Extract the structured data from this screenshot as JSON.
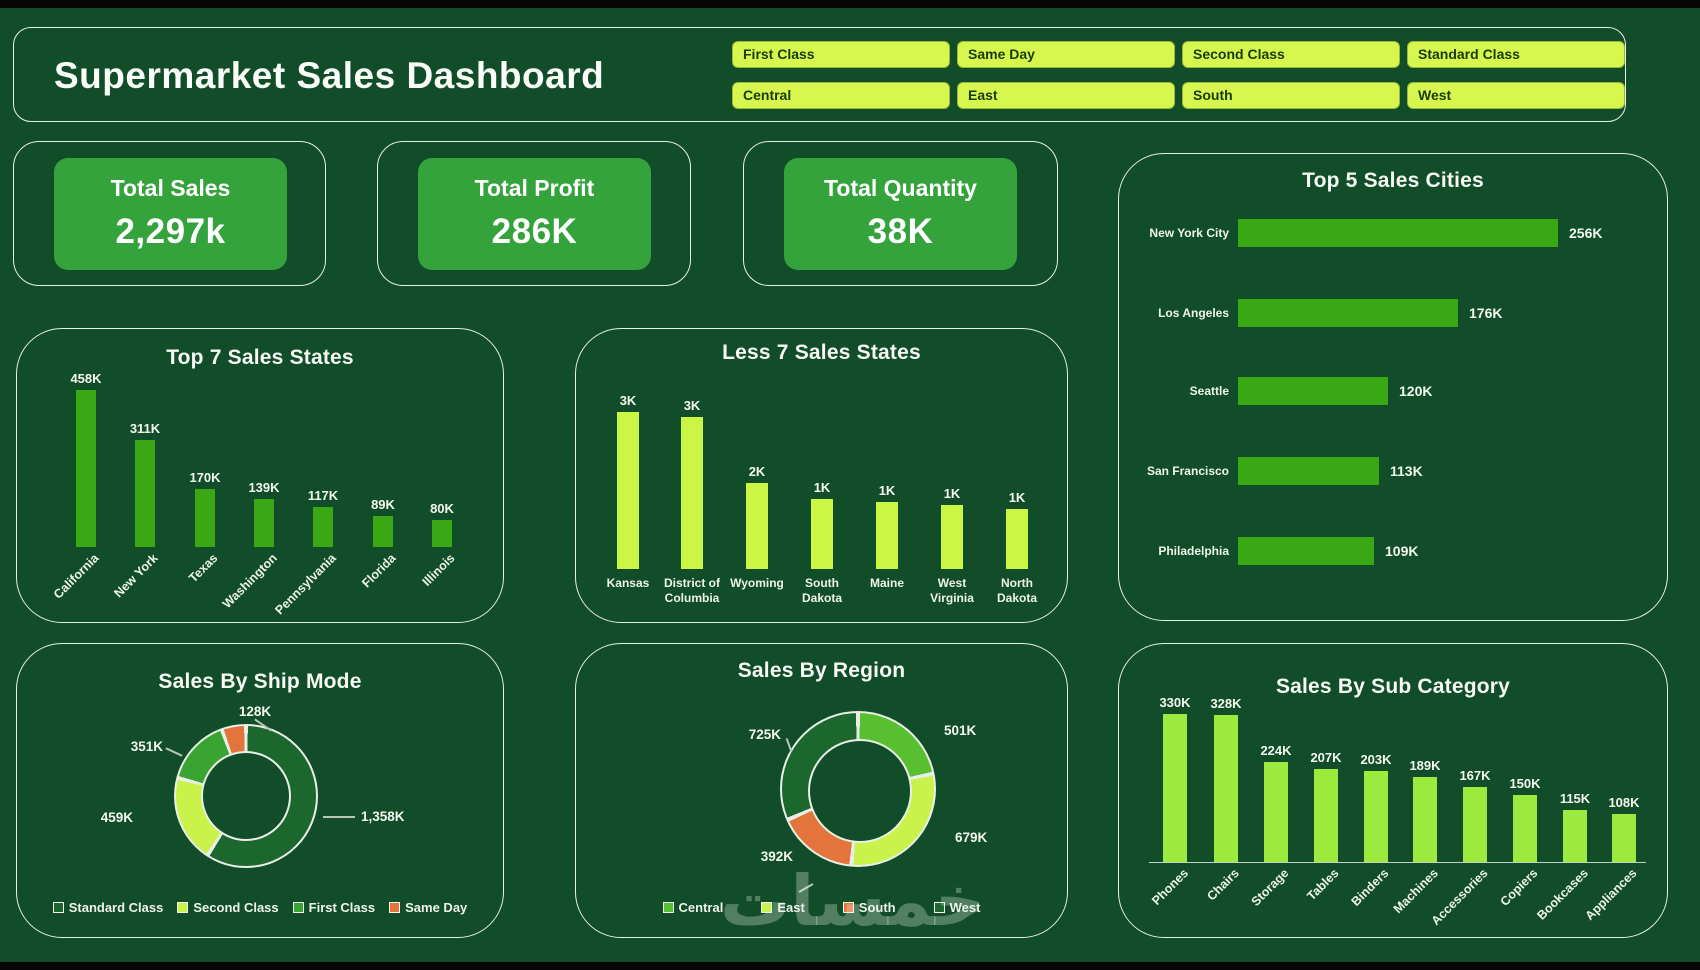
{
  "header": {
    "title": "Supermarket Sales Dashboard",
    "filters": [
      "First Class",
      "Same Day",
      "Second Class",
      "Standard Class",
      "Central",
      "East",
      "South",
      "West"
    ]
  },
  "kpis": [
    {
      "label": "Total Sales",
      "value": "2,297k"
    },
    {
      "label": "Total Profit",
      "value": "286K"
    },
    {
      "label": "Total Quantity",
      "value": "38K"
    }
  ],
  "colors": {
    "background": "#114d28",
    "panel_border": "#e8efe6",
    "kpi_card_green": "#34a33c",
    "bar_green": "#3aa815",
    "button_lime": "#d7f74f",
    "less7_lime": "#ccf644",
    "subcat_green": "#9dea3e",
    "donut_dark_green": "#1b672e",
    "donut_medium_green": "#3aa432",
    "donut_bright_green": "#58bf31",
    "donut_lime": "#c9f34b",
    "donut_orange": "#e3743c"
  },
  "watermark": {
    "text": "خمسات"
  },
  "chart_data": [
    {
      "type": "bar",
      "orientation": "horizontal",
      "title": "Top 5 Sales Cities",
      "categories": [
        "New York City",
        "Los Angeles",
        "Seattle",
        "San Francisco",
        "Philadelphia"
      ],
      "values": [
        256,
        176,
        120,
        113,
        109
      ],
      "unit": "K",
      "data_labels": [
        "256K",
        "176K",
        "120K",
        "113K",
        "109K"
      ],
      "bar_color": "#3aa815",
      "grid": false,
      "axis_labels_shown": false
    },
    {
      "type": "bar",
      "orientation": "vertical",
      "title": "Top 7 Sales States",
      "categories": [
        "California",
        "New York",
        "Texas",
        "Washington",
        "Pennsylvania",
        "Florida",
        "Illinois"
      ],
      "values": [
        458,
        311,
        170,
        139,
        117,
        89,
        80
      ],
      "unit": "K",
      "data_labels": [
        "458K",
        "311K",
        "170K",
        "139K",
        "117K",
        "89K",
        "80K"
      ],
      "bar_color": "#3aa815",
      "grid": false
    },
    {
      "type": "bar",
      "orientation": "vertical",
      "title": "Less 7 Sales States",
      "categories": [
        "Kansas",
        "District of Columbia",
        "Wyoming",
        "South Dakota",
        "Maine",
        "West Virginia",
        "North Dakota"
      ],
      "category_lines": [
        [
          "Kansas"
        ],
        [
          "District of",
          "Columbia"
        ],
        [
          "Wyoming"
        ],
        [
          "South",
          "Dakota"
        ],
        [
          "Maine"
        ],
        [
          "West",
          "Virginia"
        ],
        [
          "North",
          "Dakota"
        ]
      ],
      "values": [
        3,
        3,
        2,
        1,
        1,
        1,
        1
      ],
      "unit": "K",
      "data_labels": [
        "3K",
        "3K",
        "2K",
        "1K",
        "1K",
        "1K",
        "1K"
      ],
      "bar_color": "#ccf644",
      "grid": false
    },
    {
      "type": "donut",
      "title": "Sales By Ship Mode",
      "unit": "K",
      "slices": [
        {
          "name": "Standard Class",
          "value": 1358,
          "label": "1,358K",
          "color": "#1b672e"
        },
        {
          "name": "Second Class",
          "value": 459,
          "label": "459K",
          "color": "#c9f34b"
        },
        {
          "name": "First Class",
          "value": 351,
          "label": "351K",
          "color": "#3aa432"
        },
        {
          "name": "Same Day",
          "value": 128,
          "label": "128K",
          "color": "#e3743c"
        }
      ],
      "legend": [
        "Standard Class",
        "Second Class",
        "First Class",
        "Same Day"
      ],
      "legend_position": "bottom"
    },
    {
      "type": "donut",
      "title": "Sales By Region",
      "unit": "K",
      "slices": [
        {
          "name": "Central",
          "value": 501,
          "label": "501K",
          "color": "#58bf31"
        },
        {
          "name": "East",
          "value": 679,
          "label": "679K",
          "color": "#c9f34b"
        },
        {
          "name": "South",
          "value": 392,
          "label": "392K",
          "color": "#e3743c"
        },
        {
          "name": "West",
          "value": 725,
          "label": "725K",
          "color": "#1b672e"
        }
      ],
      "legend": [
        "Central",
        "East",
        "South",
        "West"
      ],
      "legend_position": "bottom"
    },
    {
      "type": "bar",
      "orientation": "vertical",
      "title": "Sales By Sub Category",
      "categories": [
        "Phones",
        "Chairs",
        "Storage",
        "Tables",
        "Binders",
        "Machines",
        "Accessories",
        "Copiers",
        "Bookcases",
        "Appliances"
      ],
      "values": [
        330,
        328,
        224,
        207,
        203,
        189,
        167,
        150,
        115,
        108
      ],
      "unit": "K",
      "data_labels": [
        "330K",
        "328K",
        "224K",
        "207K",
        "203K",
        "189K",
        "167K",
        "150K",
        "115K",
        "108K"
      ],
      "bar_color": "#9dea3e",
      "grid": false
    }
  ]
}
